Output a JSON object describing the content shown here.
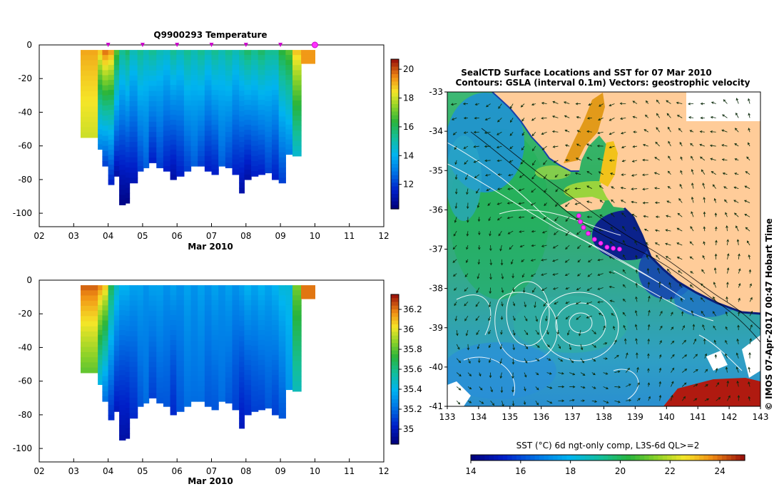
{
  "chart_data": [
    {
      "type": "heatmap",
      "title": "Q9900293  Temperature",
      "xlabel": "Mar 2010",
      "ylabel": "",
      "x_ticks": [
        "02",
        "03",
        "04",
        "05",
        "06",
        "07",
        "08",
        "09",
        "10",
        "11",
        "12"
      ],
      "y_ticks": [
        "0",
        "-20",
        "-40",
        "-60",
        "-80",
        "-100"
      ],
      "xlim": [
        2,
        12
      ],
      "ylim": [
        -108,
        0
      ],
      "colorbar_ticks": [
        "20",
        "18",
        "16",
        "14",
        "12"
      ],
      "colorbar_range": [
        10.3,
        20.7
      ],
      "markers_x": [
        4,
        5,
        6,
        7,
        8,
        9
      ],
      "highlight_marker_x": 10,
      "profiles": [
        {
          "x": 3.2,
          "w": 0.5,
          "bottom": -55,
          "surface": 19.2,
          "deep": 18.0
        },
        {
          "x": 3.7,
          "w": 0.13,
          "bottom": -62,
          "surface": 19.0,
          "deep": 13.0
        },
        {
          "x": 3.83,
          "w": 0.17,
          "bottom": -72,
          "surface": 20.0,
          "deep": 12.0
        },
        {
          "x": 4.0,
          "w": 0.17,
          "bottom": -83,
          "surface": 19.5,
          "deep": 11.5
        },
        {
          "x": 4.17,
          "w": 0.15,
          "bottom": -78,
          "surface": 17.0,
          "deep": 11.0
        },
        {
          "x": 4.32,
          "w": 0.18,
          "bottom": -95,
          "surface": 15.5,
          "deep": 10.5
        },
        {
          "x": 4.5,
          "w": 0.12,
          "bottom": -94,
          "surface": 16.0,
          "deep": 10.5
        },
        {
          "x": 4.62,
          "w": 0.23,
          "bottom": -82,
          "surface": 15.0,
          "deep": 11.2
        },
        {
          "x": 4.85,
          "w": 0.17,
          "bottom": -75,
          "surface": 15.5,
          "deep": 12.0
        },
        {
          "x": 5.02,
          "w": 0.16,
          "bottom": -73,
          "surface": 15.0,
          "deep": 12.5
        },
        {
          "x": 5.18,
          "w": 0.22,
          "bottom": -70,
          "surface": 15.5,
          "deep": 11.5
        },
        {
          "x": 5.4,
          "w": 0.2,
          "bottom": -73,
          "surface": 15.0,
          "deep": 12.0
        },
        {
          "x": 5.6,
          "w": 0.2,
          "bottom": -75,
          "surface": 14.8,
          "deep": 11.5
        },
        {
          "x": 5.8,
          "w": 0.18,
          "bottom": -80,
          "surface": 15.5,
          "deep": 11.0
        },
        {
          "x": 5.98,
          "w": 0.22,
          "bottom": -78,
          "surface": 15.0,
          "deep": 11.5
        },
        {
          "x": 6.2,
          "w": 0.2,
          "bottom": -75,
          "surface": 15.5,
          "deep": 12.0
        },
        {
          "x": 6.4,
          "w": 0.2,
          "bottom": -72,
          "surface": 15.0,
          "deep": 12.5
        },
        {
          "x": 6.6,
          "w": 0.2,
          "bottom": -72,
          "surface": 15.5,
          "deep": 12.0
        },
        {
          "x": 6.8,
          "w": 0.2,
          "bottom": -75,
          "surface": 15.0,
          "deep": 11.5
        },
        {
          "x": 7.0,
          "w": 0.2,
          "bottom": -77,
          "surface": 15.5,
          "deep": 11.5
        },
        {
          "x": 7.2,
          "w": 0.2,
          "bottom": -72,
          "surface": 15.0,
          "deep": 12.5
        },
        {
          "x": 7.4,
          "w": 0.2,
          "bottom": -73,
          "surface": 15.5,
          "deep": 12.0
        },
        {
          "x": 7.6,
          "w": 0.2,
          "bottom": -77,
          "surface": 15.0,
          "deep": 11.5
        },
        {
          "x": 7.8,
          "w": 0.15,
          "bottom": -88,
          "surface": 15.5,
          "deep": 11.0
        },
        {
          "x": 7.95,
          "w": 0.2,
          "bottom": -80,
          "surface": 16.0,
          "deep": 11.0
        },
        {
          "x": 8.15,
          "w": 0.2,
          "bottom": -78,
          "surface": 15.5,
          "deep": 11.5
        },
        {
          "x": 8.35,
          "w": 0.2,
          "bottom": -77,
          "surface": 16.0,
          "deep": 11.5
        },
        {
          "x": 8.55,
          "w": 0.2,
          "bottom": -76,
          "surface": 15.5,
          "deep": 12.0
        },
        {
          "x": 8.75,
          "w": 0.2,
          "bottom": -80,
          "surface": 15.5,
          "deep": 11.5
        },
        {
          "x": 8.95,
          "w": 0.2,
          "bottom": -82,
          "surface": 16.5,
          "deep": 12.0
        },
        {
          "x": 9.15,
          "w": 0.2,
          "bottom": -65,
          "surface": 17.0,
          "deep": 13.0
        },
        {
          "x": 9.35,
          "w": 0.25,
          "bottom": -66,
          "surface": 19.0,
          "deep": 14.5
        },
        {
          "x": 9.6,
          "w": 0.4,
          "bottom": -11,
          "surface": 19.3,
          "deep": 19.3
        }
      ]
    },
    {
      "type": "heatmap",
      "title": "",
      "xlabel": "Mar 2010",
      "ylabel": "",
      "x_ticks": [
        "02",
        "03",
        "04",
        "05",
        "06",
        "07",
        "08",
        "09",
        "10",
        "11",
        "12"
      ],
      "y_ticks": [
        "0",
        "-20",
        "-40",
        "-60",
        "-80",
        "-100"
      ],
      "xlim": [
        2,
        12
      ],
      "ylim": [
        -108,
        0
      ],
      "colorbar_ticks": [
        "36.2",
        "36",
        "35.8",
        "35.6",
        "35.4",
        "35.2",
        "35"
      ],
      "colorbar_range": [
        34.85,
        36.35
      ],
      "profiles": [
        {
          "x": 3.2,
          "w": 0.5,
          "bottom": -55,
          "surface": 36.25,
          "deep": 35.8
        },
        {
          "x": 3.7,
          "w": 0.13,
          "bottom": -62,
          "surface": 36.2,
          "deep": 35.4
        },
        {
          "x": 3.83,
          "w": 0.17,
          "bottom": -72,
          "surface": 36.1,
          "deep": 35.2
        },
        {
          "x": 4.0,
          "w": 0.17,
          "bottom": -83,
          "surface": 35.7,
          "deep": 35.05
        },
        {
          "x": 4.17,
          "w": 0.15,
          "bottom": -78,
          "surface": 35.5,
          "deep": 35.0
        },
        {
          "x": 4.32,
          "w": 0.18,
          "bottom": -95,
          "surface": 35.4,
          "deep": 34.95
        },
        {
          "x": 4.5,
          "w": 0.12,
          "bottom": -94,
          "surface": 35.4,
          "deep": 34.95
        },
        {
          "x": 4.62,
          "w": 0.23,
          "bottom": -82,
          "surface": 35.35,
          "deep": 35.05
        },
        {
          "x": 4.85,
          "w": 0.17,
          "bottom": -75,
          "surface": 35.35,
          "deep": 35.15
        },
        {
          "x": 5.02,
          "w": 0.16,
          "bottom": -73,
          "surface": 35.3,
          "deep": 35.2
        },
        {
          "x": 5.18,
          "w": 0.22,
          "bottom": -70,
          "surface": 35.35,
          "deep": 35.1
        },
        {
          "x": 5.4,
          "w": 0.2,
          "bottom": -73,
          "surface": 35.35,
          "deep": 35.15
        },
        {
          "x": 5.6,
          "w": 0.2,
          "bottom": -75,
          "surface": 35.3,
          "deep": 35.15
        },
        {
          "x": 5.8,
          "w": 0.18,
          "bottom": -80,
          "surface": 35.35,
          "deep": 35.05
        },
        {
          "x": 5.98,
          "w": 0.22,
          "bottom": -78,
          "surface": 35.3,
          "deep": 35.15
        },
        {
          "x": 6.2,
          "w": 0.2,
          "bottom": -75,
          "surface": 35.35,
          "deep": 35.2
        },
        {
          "x": 6.4,
          "w": 0.2,
          "bottom": -72,
          "surface": 35.3,
          "deep": 35.2
        },
        {
          "x": 6.6,
          "w": 0.2,
          "bottom": -72,
          "surface": 35.35,
          "deep": 35.2
        },
        {
          "x": 6.8,
          "w": 0.2,
          "bottom": -75,
          "surface": 35.3,
          "deep": 35.15
        },
        {
          "x": 7.0,
          "w": 0.2,
          "bottom": -77,
          "surface": 35.35,
          "deep": 35.15
        },
        {
          "x": 7.2,
          "w": 0.2,
          "bottom": -72,
          "surface": 35.3,
          "deep": 35.2
        },
        {
          "x": 7.4,
          "w": 0.2,
          "bottom": -73,
          "surface": 35.35,
          "deep": 35.15
        },
        {
          "x": 7.6,
          "w": 0.2,
          "bottom": -77,
          "surface": 35.3,
          "deep": 35.1
        },
        {
          "x": 7.8,
          "w": 0.15,
          "bottom": -88,
          "surface": 35.35,
          "deep": 35.0
        },
        {
          "x": 7.95,
          "w": 0.2,
          "bottom": -80,
          "surface": 35.4,
          "deep": 35.05
        },
        {
          "x": 8.15,
          "w": 0.2,
          "bottom": -78,
          "surface": 35.35,
          "deep": 35.1
        },
        {
          "x": 8.35,
          "w": 0.2,
          "bottom": -77,
          "surface": 35.4,
          "deep": 35.1
        },
        {
          "x": 8.55,
          "w": 0.2,
          "bottom": -76,
          "surface": 35.35,
          "deep": 35.15
        },
        {
          "x": 8.75,
          "w": 0.2,
          "bottom": -80,
          "surface": 35.4,
          "deep": 35.1
        },
        {
          "x": 8.95,
          "w": 0.2,
          "bottom": -82,
          "surface": 35.45,
          "deep": 35.15
        },
        {
          "x": 9.15,
          "w": 0.2,
          "bottom": -65,
          "surface": 35.45,
          "deep": 35.3
        },
        {
          "x": 9.35,
          "w": 0.25,
          "bottom": -66,
          "surface": 35.85,
          "deep": 35.5
        },
        {
          "x": 9.6,
          "w": 0.4,
          "bottom": -11,
          "surface": 36.2,
          "deep": 36.2
        }
      ]
    },
    {
      "type": "heatmap",
      "title": "SealCTD Surface Locations and SST for 07 Mar 2010",
      "subtitle": "Contours: GSLA (interval 0.1m) Vectors: geostrophic velocity",
      "xlabel": "",
      "ylabel": "",
      "x_ticks": [
        "133",
        "134",
        "135",
        "136",
        "137",
        "138",
        "139",
        "140",
        "141",
        "142",
        "143"
      ],
      "y_ticks": [
        "-33",
        "-34",
        "-35",
        "-36",
        "-37",
        "-38",
        "-39",
        "-40",
        "-41"
      ],
      "xlim": [
        133,
        143
      ],
      "ylim": [
        -41,
        -33
      ],
      "colorbar_label": "SST (°C) 6d ngt-only comp, L3S-6d QL>=2",
      "colorbar_ticks": [
        "14",
        "16",
        "18",
        "20",
        "22",
        "24"
      ],
      "colorbar_range": [
        14,
        25
      ],
      "credit": "© IMOS 07-Apr-2017 00:47 Hobart Time",
      "seal_track": [
        [
          137.2,
          -36.15
        ],
        [
          137.25,
          -36.3
        ],
        [
          137.35,
          -36.45
        ],
        [
          137.5,
          -36.6
        ],
        [
          137.7,
          -36.75
        ],
        [
          137.9,
          -36.85
        ],
        [
          138.1,
          -36.95
        ],
        [
          138.3,
          -36.98
        ],
        [
          138.5,
          -37.0
        ]
      ]
    }
  ]
}
